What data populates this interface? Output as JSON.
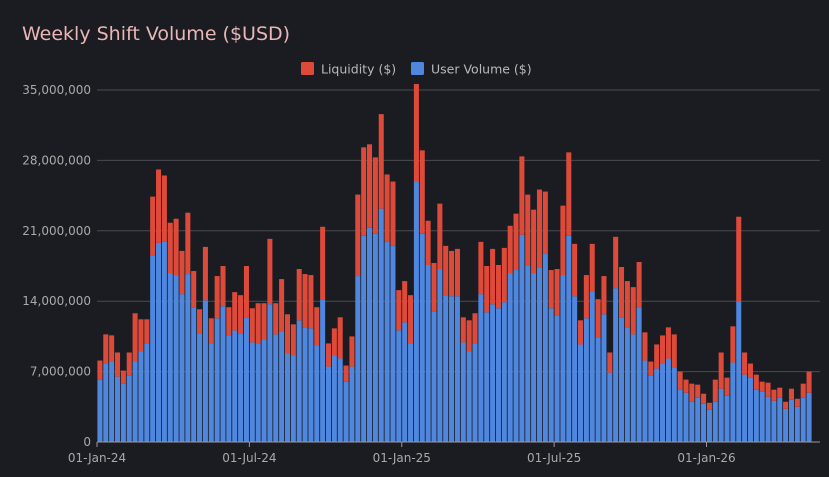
{
  "chart_data": {
    "type": "bar",
    "stacked": true,
    "title": "Weekly Shift Volume ($USD)",
    "xlabel": "",
    "ylabel": "",
    "ylim": [
      0,
      35000000
    ],
    "y_ticks": [
      "0",
      "7,000,000",
      "14,000,000",
      "21,000,000",
      "28,000,000",
      "35,000,000"
    ],
    "y_tick_values": [
      0,
      7000000,
      14000000,
      21000000,
      28000000,
      35000000
    ],
    "x_ticks": [
      "01-Jan-24",
      "01-Jul-24",
      "01-Jan-25",
      "01-Jul-25",
      "01-Jan-26"
    ],
    "x_tick_weeks": [
      0,
      26,
      52,
      78,
      104
    ],
    "grid": true,
    "legend_position": "top-center",
    "colors": {
      "liquidity": "#dd4a3a",
      "user_volume": "#4f86de",
      "background": "#1b1c21",
      "grid": "#4a4b50",
      "title": "#e8b6b6"
    },
    "series": [
      {
        "name": "User Volume ($)",
        "color": "#4f86de",
        "values": [
          6200000,
          7800000,
          8000000,
          6500000,
          5800000,
          6600000,
          8000000,
          9000000,
          9800000,
          18500000,
          19800000,
          19900000,
          16800000,
          16600000,
          14700000,
          16700000,
          13400000,
          10800000,
          14100000,
          9800000,
          12300000,
          13500000,
          10600000,
          11100000,
          10800000,
          12400000,
          9900000,
          9800000,
          10200000,
          13700000,
          10700000,
          11000000,
          8800000,
          8600000,
          12100000,
          11400000,
          11300000,
          9600000,
          14200000,
          7500000,
          8600000,
          8300000,
          6000000,
          7500000,
          16500000,
          20500000,
          21300000,
          20700000,
          23200000,
          19900000,
          19500000,
          11100000,
          11900000,
          9800000,
          25900000,
          20700000,
          17600000,
          13000000,
          17200000,
          14600000,
          14500000,
          14500000,
          9900000,
          9000000,
          9800000,
          14700000,
          12900000,
          13700000,
          13300000,
          13900000,
          16800000,
          17100000,
          20600000,
          17500000,
          16800000,
          17300000,
          18700000,
          13300000,
          12600000,
          16600000,
          20500000,
          14500000,
          9700000,
          12300000,
          15000000,
          10400000,
          12700000,
          6900000,
          15300000,
          12400000,
          11400000,
          10700000,
          13400000,
          8100000,
          6600000,
          7300000,
          7800000,
          8300000,
          7400000,
          5200000,
          4900000,
          4000000,
          4400000,
          3800000,
          3200000,
          4000000,
          5300000,
          4600000,
          7900000,
          14000000,
          6700000,
          6400000,
          5200000,
          5000000,
          4500000,
          4100000,
          4400000,
          3300000,
          4200000,
          3500000,
          4400000,
          4900000
        ]
      },
      {
        "name": "Liquidity ($)",
        "color": "#dd4a3a",
        "values": [
          1900000,
          2900000,
          2600000,
          2400000,
          1300000,
          2300000,
          4800000,
          3200000,
          2400000,
          5900000,
          7300000,
          6600000,
          5000000,
          5600000,
          4300000,
          6100000,
          3600000,
          2400000,
          5300000,
          2500000,
          4200000,
          4000000,
          2800000,
          3800000,
          3800000,
          5100000,
          3400000,
          4000000,
          3600000,
          6500000,
          3100000,
          5200000,
          3900000,
          3100000,
          5100000,
          5300000,
          5300000,
          3800000,
          7200000,
          2300000,
          2700000,
          4100000,
          1600000,
          3000000,
          8100000,
          8800000,
          8300000,
          7600000,
          9400000,
          6700000,
          6400000,
          4000000,
          4100000,
          4800000,
          9700000,
          8300000,
          4400000,
          4800000,
          6500000,
          4900000,
          4500000,
          4700000,
          2500000,
          3100000,
          3000000,
          5200000,
          4600000,
          5500000,
          4300000,
          5400000,
          4700000,
          5600000,
          7800000,
          7100000,
          6300000,
          7800000,
          6200000,
          3800000,
          4600000,
          6900000,
          8300000,
          5200000,
          2400000,
          4300000,
          4700000,
          3800000,
          3800000,
          2000000,
          5100000,
          5000000,
          4600000,
          4700000,
          4500000,
          2800000,
          1400000,
          2400000,
          2800000,
          3100000,
          3300000,
          1800000,
          1300000,
          1800000,
          1300000,
          1000000,
          700000,
          2200000,
          3600000,
          1800000,
          3600000,
          8400000,
          2200000,
          1400000,
          1500000,
          1000000,
          1400000,
          1100000,
          1000000,
          700000,
          1100000,
          800000,
          1400000,
          2100000
        ]
      }
    ]
  }
}
